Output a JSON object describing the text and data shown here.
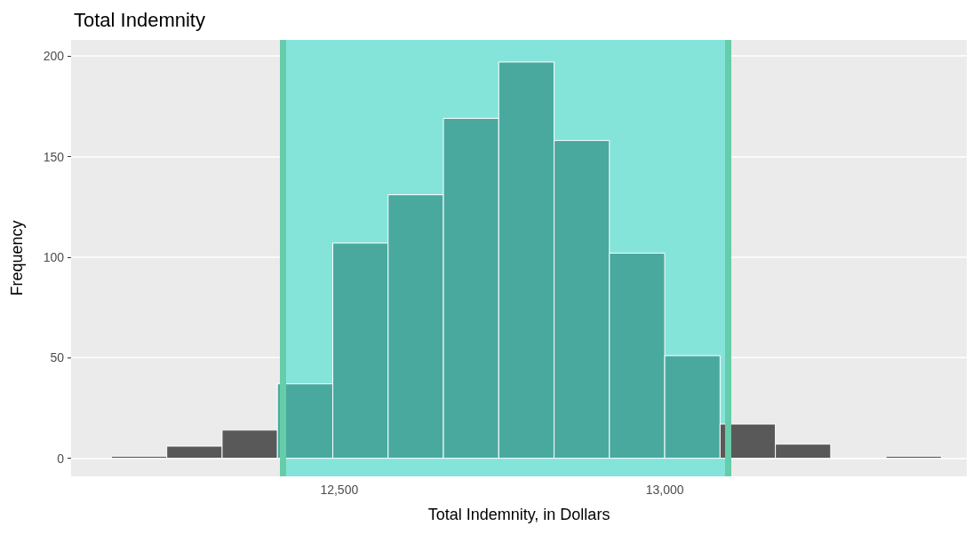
{
  "chart_data": {
    "type": "histogram",
    "title": "Total Indemnity",
    "xlabel": "Total Indemnity, in Dollars",
    "ylabel": "Frequency",
    "bins": [
      12150,
      12235,
      12320,
      12405,
      12490,
      12575,
      12660,
      12745,
      12830,
      12915,
      13000,
      13085,
      13170,
      13255,
      13340,
      13425
    ],
    "values": [
      1,
      6,
      14,
      37,
      107,
      131,
      169,
      197,
      158,
      102,
      51,
      17,
      7,
      0,
      1
    ],
    "colors": [
      "#595959",
      "#595959",
      "#595959",
      "#4aa99f",
      "#4aa99f",
      "#4aa99f",
      "#4aa99f",
      "#4aa99f",
      "#4aa99f",
      "#4aa99f",
      "#4aa99f",
      "#595959",
      "#595959",
      "#ffffff",
      "#595959"
    ],
    "xlim": [
      12088,
      13464
    ],
    "xticks": [
      {
        "value": 12500,
        "label": "12,500"
      },
      {
        "value": 13000,
        "label": "13,000"
      }
    ],
    "ylim": [
      -9,
      208
    ],
    "yticks": [
      0,
      50,
      100,
      150,
      200
    ],
    "bands": [
      {
        "axis": "x",
        "from": 12413,
        "to": 13097,
        "color": "#84e4da"
      }
    ],
    "ref_lines": [
      {
        "axis": "x",
        "value": 12413,
        "color": "#66cdaa"
      },
      {
        "axis": "x",
        "value": 13097,
        "color": "#66cdaa"
      }
    ],
    "grid": true
  }
}
